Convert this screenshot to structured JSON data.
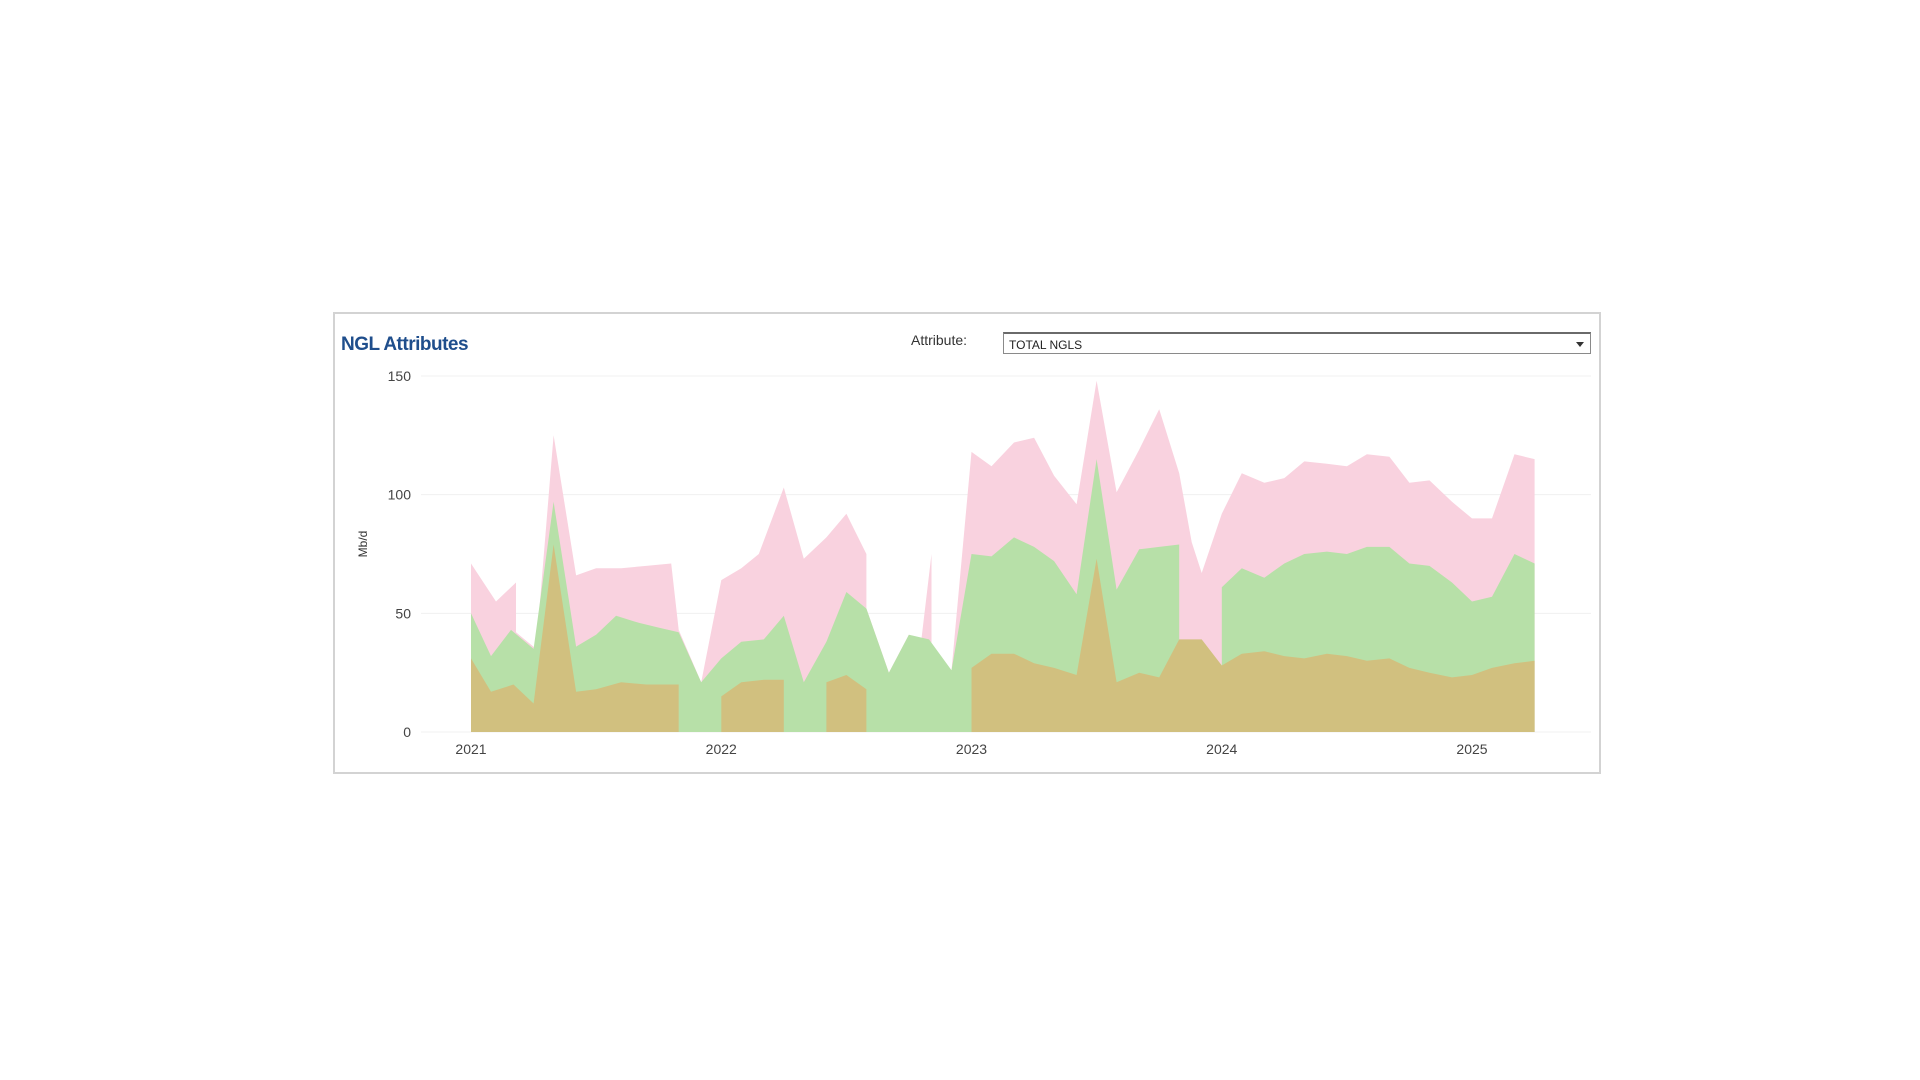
{
  "panel": {
    "title": "NGL Attributes",
    "attribute_label": "Attribute:",
    "attribute_value": "TOTAL NGLS"
  },
  "chart_data": {
    "type": "area",
    "ylabel": "Mb/d",
    "ylim": [
      0,
      150
    ],
    "xlim": [
      2021.0,
      2025.45
    ],
    "yticks": [
      0,
      50,
      100,
      150
    ],
    "xticks": [
      2021,
      2022,
      2023,
      2024,
      2025
    ],
    "grid": true,
    "colors": {
      "total": "#f9d2df",
      "mid": "#b7e0a8",
      "base": "#d1c07f"
    },
    "series": [
      {
        "key": "total",
        "segments": [
          [
            [
              2021.0,
              71
            ],
            [
              2021.1,
              55
            ],
            [
              2021.18,
              63
            ],
            [
              2021.18,
              42
            ],
            [
              2021.26,
              35
            ],
            [
              2021.33,
              125
            ],
            [
              2021.42,
              66
            ],
            [
              2021.5,
              69
            ],
            [
              2021.6,
              69
            ],
            [
              2021.7,
              70
            ],
            [
              2021.8,
              71
            ],
            [
              2021.83,
              43
            ]
          ],
          [
            [
              2021.83,
              43
            ],
            [
              2021.92,
              21
            ],
            [
              2022.0,
              64
            ],
            [
              2022.08,
              69
            ],
            [
              2022.15,
              75
            ],
            [
              2022.25,
              103
            ],
            [
              2022.33,
              73
            ],
            [
              2022.42,
              82
            ],
            [
              2022.5,
              92
            ],
            [
              2022.58,
              75
            ],
            [
              2022.58,
              52
            ],
            [
              2022.67,
              25
            ],
            [
              2022.75,
              41
            ],
            [
              2022.8,
              39
            ],
            [
              2022.84,
              75
            ],
            [
              2022.84,
              34
            ],
            [
              2022.92,
              26
            ],
            [
              2023.0,
              118
            ],
            [
              2023.08,
              112
            ],
            [
              2023.17,
              122
            ],
            [
              2023.25,
              124
            ],
            [
              2023.33,
              108
            ],
            [
              2023.42,
              96
            ],
            [
              2023.5,
              148
            ],
            [
              2023.58,
              101
            ],
            [
              2023.67,
              119
            ],
            [
              2023.75,
              136
            ],
            [
              2023.83,
              109
            ],
            [
              2023.88,
              80
            ],
            [
              2023.92,
              67
            ],
            [
              2024.0,
              92
            ],
            [
              2024.08,
              109
            ],
            [
              2024.17,
              105
            ],
            [
              2024.25,
              107
            ],
            [
              2024.33,
              114
            ],
            [
              2024.42,
              113
            ],
            [
              2024.5,
              112
            ],
            [
              2024.58,
              117
            ],
            [
              2024.67,
              116
            ],
            [
              2024.75,
              105
            ],
            [
              2024.83,
              106
            ],
            [
              2024.92,
              97
            ],
            [
              2025.0,
              90
            ],
            [
              2025.08,
              90
            ],
            [
              2025.17,
              117
            ],
            [
              2025.25,
              115
            ]
          ]
        ]
      },
      {
        "key": "mid",
        "segments": [
          [
            [
              2021.0,
              50
            ],
            [
              2021.08,
              32
            ],
            [
              2021.16,
              43
            ],
            [
              2021.25,
              35
            ],
            [
              2021.33,
              97
            ],
            [
              2021.42,
              36
            ],
            [
              2021.5,
              41
            ],
            [
              2021.58,
              49
            ],
            [
              2021.67,
              46
            ],
            [
              2021.75,
              44
            ],
            [
              2021.83,
              42
            ],
            [
              2021.92,
              21
            ],
            [
              2022.0,
              31
            ],
            [
              2022.08,
              38
            ],
            [
              2022.17,
              39
            ],
            [
              2022.25,
              49
            ],
            [
              2022.33,
              21
            ],
            [
              2022.42,
              38
            ],
            [
              2022.5,
              59
            ],
            [
              2022.58,
              52
            ],
            [
              2022.67,
              25
            ],
            [
              2022.75,
              41
            ],
            [
              2022.83,
              39
            ],
            [
              2022.92,
              26
            ],
            [
              2023.0,
              75
            ],
            [
              2023.08,
              74
            ],
            [
              2023.17,
              82
            ],
            [
              2023.25,
              78
            ],
            [
              2023.33,
              72
            ],
            [
              2023.42,
              58
            ],
            [
              2023.5,
              115
            ],
            [
              2023.58,
              60
            ],
            [
              2023.67,
              77
            ],
            [
              2023.75,
              78
            ],
            [
              2023.83,
              79
            ],
            [
              2023.83,
              37
            ],
            [
              2023.92,
              37
            ],
            [
              2023.92,
              38
            ],
            [
              2024.0,
              28
            ]
          ],
          [
            [
              2024.0,
              61
            ],
            [
              2024.08,
              69
            ],
            [
              2024.17,
              65
            ],
            [
              2024.25,
              71
            ],
            [
              2024.33,
              75
            ],
            [
              2024.42,
              76
            ],
            [
              2024.5,
              75
            ],
            [
              2024.58,
              78
            ],
            [
              2024.67,
              78
            ],
            [
              2024.75,
              71
            ],
            [
              2024.83,
              70
            ],
            [
              2024.92,
              63
            ],
            [
              2025.0,
              55
            ],
            [
              2025.08,
              57
            ],
            [
              2025.17,
              75
            ],
            [
              2025.25,
              71
            ]
          ]
        ]
      },
      {
        "key": "base",
        "segments": [
          [
            [
              2021.0,
              31
            ],
            [
              2021.08,
              17
            ],
            [
              2021.17,
              20
            ],
            [
              2021.25,
              12
            ],
            [
              2021.33,
              79
            ],
            [
              2021.42,
              17
            ],
            [
              2021.5,
              18
            ],
            [
              2021.6,
              21
            ],
            [
              2021.7,
              20
            ],
            [
              2021.83,
              20
            ]
          ],
          [
            [
              2022.0,
              15
            ],
            [
              2022.08,
              21
            ],
            [
              2022.17,
              22
            ],
            [
              2022.25,
              22
            ]
          ],
          [
            [
              2022.42,
              21
            ],
            [
              2022.5,
              24
            ],
            [
              2022.58,
              18
            ]
          ],
          [
            [
              2023.0,
              27
            ],
            [
              2023.08,
              33
            ],
            [
              2023.17,
              33
            ],
            [
              2023.25,
              29
            ],
            [
              2023.33,
              27
            ],
            [
              2023.42,
              24
            ],
            [
              2023.5,
              73
            ],
            [
              2023.58,
              21
            ],
            [
              2023.67,
              25
            ],
            [
              2023.75,
              23
            ],
            [
              2023.83,
              39
            ],
            [
              2023.92,
              39
            ],
            [
              2024.0,
              28
            ],
            [
              2024.08,
              33
            ],
            [
              2024.17,
              34
            ],
            [
              2024.25,
              32
            ],
            [
              2024.33,
              31
            ],
            [
              2024.42,
              33
            ],
            [
              2024.5,
              32
            ],
            [
              2024.58,
              30
            ],
            [
              2024.67,
              31
            ],
            [
              2024.75,
              27
            ],
            [
              2024.83,
              25
            ],
            [
              2024.92,
              23
            ],
            [
              2025.0,
              24
            ],
            [
              2025.08,
              27
            ],
            [
              2025.17,
              29
            ],
            [
              2025.25,
              30
            ]
          ]
        ]
      }
    ]
  }
}
